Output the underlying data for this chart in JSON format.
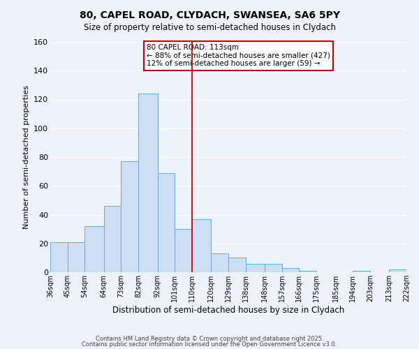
{
  "title": "80, CAPEL ROAD, CLYDACH, SWANSEA, SA6 5PY",
  "subtitle": "Size of property relative to semi-detached houses in Clydach",
  "xlabel": "Distribution of semi-detached houses by size in Clydach",
  "ylabel": "Number of semi-detached properties",
  "bar_color": "#ccdff5",
  "bar_edge_color": "#6aaad4",
  "background_color": "#eef2fa",
  "grid_color": "#ffffff",
  "bin_edges": [
    36,
    45,
    54,
    64,
    73,
    82,
    92,
    101,
    110,
    120,
    129,
    138,
    148,
    157,
    166,
    175,
    185,
    194,
    203,
    213,
    222
  ],
  "bar_heights": [
    21,
    21,
    32,
    46,
    77,
    124,
    69,
    30,
    37,
    13,
    10,
    6,
    6,
    3,
    1,
    0,
    0,
    1,
    0,
    2
  ],
  "tick_labels": [
    "36sqm",
    "45sqm",
    "54sqm",
    "64sqm",
    "73sqm",
    "82sqm",
    "92sqm",
    "101sqm",
    "110sqm",
    "120sqm",
    "129sqm",
    "138sqm",
    "148sqm",
    "157sqm",
    "166sqm",
    "175sqm",
    "185sqm",
    "194sqm",
    "203sqm",
    "213sqm",
    "222sqm"
  ],
  "vline_x": 110,
  "vline_color": "#cc0000",
  "annotation_title": "80 CAPEL ROAD: 113sqm",
  "annotation_line1": "← 88% of semi-detached houses are smaller (427)",
  "annotation_line2": "12% of semi-detached houses are larger (59) →",
  "annotation_box_color": "#ffffff",
  "annotation_box_edge": "#cc0000",
  "ylim": [
    0,
    160
  ],
  "yticks": [
    0,
    20,
    40,
    60,
    80,
    100,
    120,
    140,
    160
  ],
  "footer1": "Contains HM Land Registry data © Crown copyright and database right 2025.",
  "footer2": "Contains public sector information licensed under the Open Government Licence v3.0."
}
